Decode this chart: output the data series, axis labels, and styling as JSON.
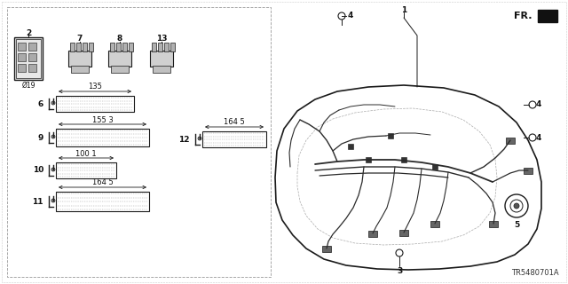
{
  "bg_color": "#ffffff",
  "diagram_code": "TR5480701A",
  "outline_color": "#1a1a1a",
  "gray_color": "#666666",
  "light_gray": "#aaaaaa",
  "tape_labels": {
    "6": "135",
    "9": "155 3",
    "10": "100 1",
    "11": "164 5",
    "12": "164 5"
  },
  "box_label": "Ø19"
}
